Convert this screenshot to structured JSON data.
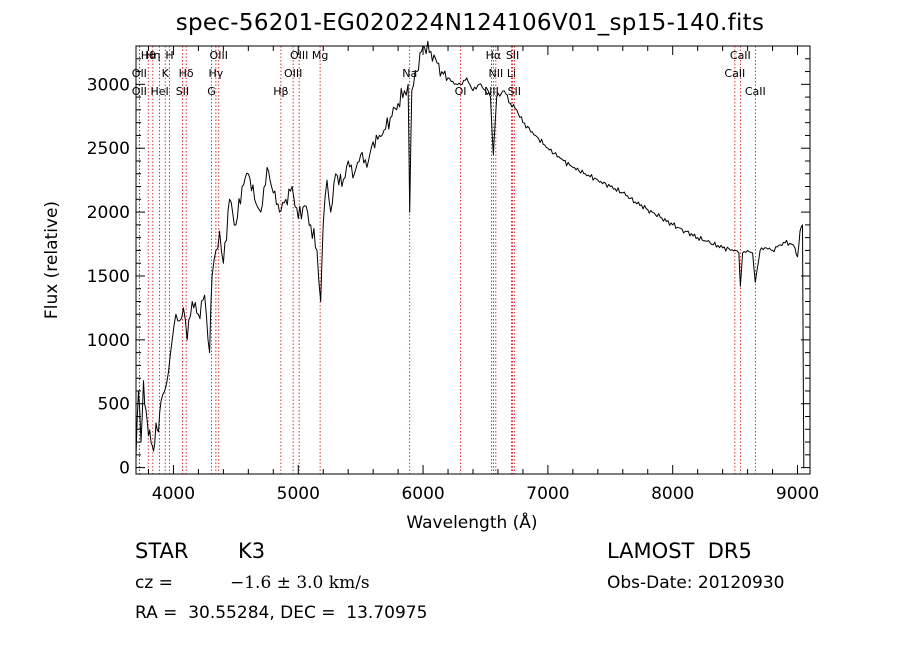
{
  "header": {
    "title": "spec-56201-EG020224N124106V01_sp15-140.fits"
  },
  "info": {
    "object_class": "STAR",
    "subclass": "K3",
    "survey": "LAMOST  DR5",
    "cz_label": "cz = ",
    "cz_value": "−1.6 ± 3.0 km/s",
    "obs_date": "Obs-Date: 20120930",
    "coords": "RA =  30.55284, DEC =  13.70975"
  },
  "chart_data": {
    "type": "line",
    "title": "spec-56201-EG020224N124106V01_sp15-140.fits",
    "xlabel": "Wavelength (Å)",
    "ylabel": "Flux (relative)",
    "xlim": [
      3700,
      9100
    ],
    "ylim": [
      -50,
      3300
    ],
    "xticks": [
      4000,
      5000,
      6000,
      7000,
      8000,
      9000
    ],
    "yticks": [
      0,
      500,
      1000,
      1500,
      2000,
      2500,
      3000
    ],
    "xtick_labels": [
      "4000",
      "5000",
      "6000",
      "7000",
      "8000",
      "9000"
    ],
    "ytick_labels": [
      "0",
      "500",
      "1000",
      "1500",
      "2000",
      "2500",
      "3000"
    ],
    "grid": false,
    "line_color": "#000000",
    "marker_color": "#cc0000",
    "series": [
      {
        "x": [
          3700,
          3720,
          3740,
          3760,
          3780,
          3800,
          3820,
          3840,
          3860,
          3880,
          3900,
          3930,
          3960,
          3990,
          4020,
          4050,
          4080,
          4110,
          4150,
          4200,
          4250,
          4290,
          4310,
          4340,
          4370,
          4400,
          4450,
          4500,
          4550,
          4600,
          4650,
          4700,
          4750,
          4800,
          4850,
          4900,
          4950,
          5000,
          5050,
          5100,
          5150,
          5180,
          5200,
          5230,
          5260,
          5300,
          5350,
          5400,
          5450,
          5500,
          5550,
          5600,
          5650,
          5700,
          5750,
          5800,
          5850,
          5880,
          5893,
          5910,
          5950,
          6000,
          6050,
          6100,
          6150,
          6200,
          6250,
          6300,
          6350,
          6400,
          6450,
          6500,
          6540,
          6563,
          6590,
          6650,
          6700,
          6750,
          6800,
          6900,
          7000,
          7100,
          7200,
          7300,
          7400,
          7500,
          7600,
          7700,
          7800,
          7900,
          8000,
          8100,
          8200,
          8300,
          8400,
          8500,
          8530,
          8542,
          8560,
          8600,
          8640,
          8662,
          8700,
          8750,
          8800,
          8850,
          8900,
          8950,
          8980,
          9000,
          9020,
          9040,
          9050
        ],
        "values": [
          80,
          600,
          200,
          680,
          450,
          250,
          200,
          130,
          350,
          280,
          520,
          600,
          750,
          1000,
          1200,
          1150,
          1250,
          1000,
          1300,
          1200,
          1350,
          900,
          1500,
          1700,
          1850,
          1600,
          2100,
          1900,
          2200,
          2300,
          2100,
          2000,
          2350,
          2150,
          2000,
          2100,
          2200,
          1950,
          2050,
          1900,
          1700,
          1300,
          1900,
          2250,
          2000,
          2300,
          2200,
          2400,
          2300,
          2450,
          2350,
          2550,
          2600,
          2650,
          2750,
          2850,
          2950,
          3000,
          2000,
          2950,
          3100,
          3300,
          3250,
          3200,
          3100,
          3050,
          3000,
          3000,
          3050,
          2950,
          3000,
          2950,
          2900,
          2450,
          2900,
          2950,
          2850,
          2800,
          2700,
          2600,
          2500,
          2420,
          2350,
          2300,
          2250,
          2200,
          2150,
          2080,
          2020,
          1960,
          1900,
          1850,
          1800,
          1760,
          1720,
          1700,
          1680,
          1420,
          1680,
          1700,
          1680,
          1450,
          1700,
          1720,
          1700,
          1740,
          1760,
          1750,
          1720,
          1650,
          1850,
          1900,
          0
        ]
      }
    ],
    "lines": [
      {
        "label": "Hθ",
        "x": 3798
      },
      {
        "label": "OII",
        "x": 3727
      },
      {
        "label": "OII",
        "x": 3727
      },
      {
        "label": "Hη",
        "x": 3835
      },
      {
        "label": "K",
        "x": 3934
      },
      {
        "label": "HeI",
        "x": 3889
      },
      {
        "label": "H",
        "x": 3969
      },
      {
        "label": "Hδ",
        "x": 4102
      },
      {
        "label": "SII",
        "x": 4072
      },
      {
        "label": "OIII",
        "x": 4363
      },
      {
        "label": "Hγ",
        "x": 4340
      },
      {
        "label": "G",
        "x": 4305
      },
      {
        "label": "OIII",
        "x": 5007
      },
      {
        "label": "OIII",
        "x": 4959
      },
      {
        "label": "Hβ",
        "x": 4861
      },
      {
        "label": "Mg",
        "x": 5175
      },
      {
        "label": "Na",
        "x": 5893
      },
      {
        "label": "OI",
        "x": 6300
      },
      {
        "label": "Hα",
        "x": 6563
      },
      {
        "label": "NII",
        "x": 6583
      },
      {
        "label": "NII",
        "x": 6548
      },
      {
        "label": "SII",
        "x": 6717
      },
      {
        "label": "Li",
        "x": 6708
      },
      {
        "label": "SII",
        "x": 6731
      },
      {
        "label": "CaII",
        "x": 8542
      },
      {
        "label": "CaII",
        "x": 8498
      },
      {
        "label": "CaII",
        "x": 8662
      }
    ]
  }
}
